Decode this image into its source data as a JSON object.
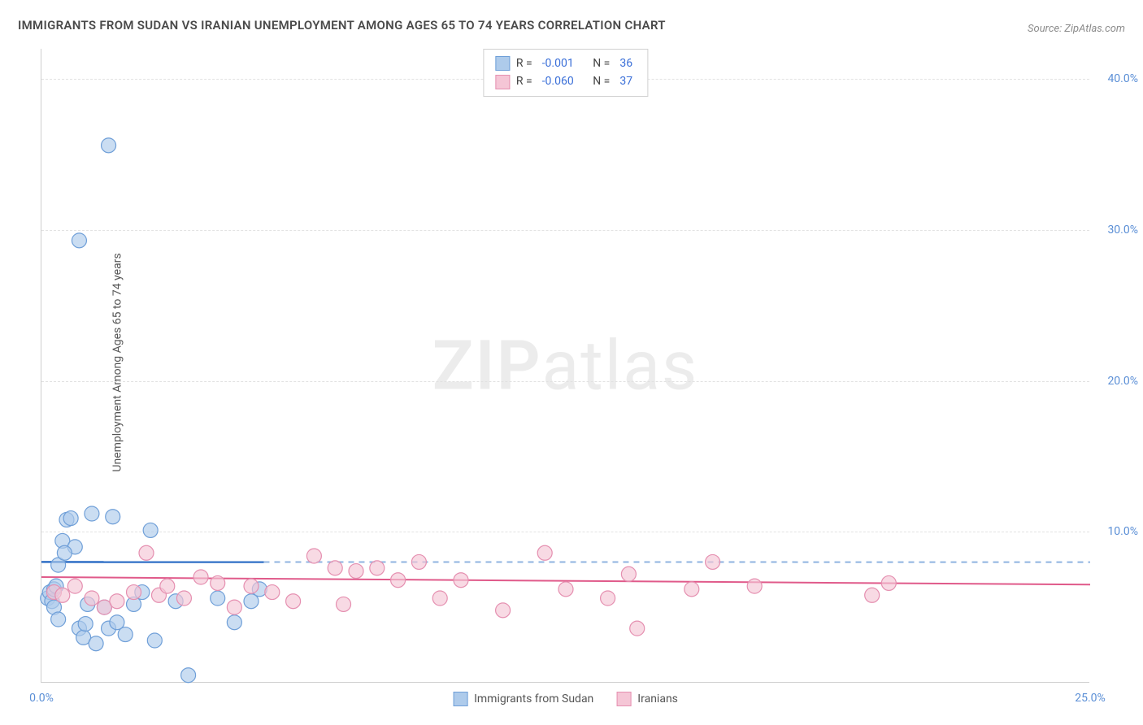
{
  "title": "IMMIGRANTS FROM SUDAN VS IRANIAN UNEMPLOYMENT AMONG AGES 65 TO 74 YEARS CORRELATION CHART",
  "source": "Source: ZipAtlas.com",
  "yaxis_label": "Unemployment Among Ages 65 to 74 years",
  "watermark_bold": "ZIP",
  "watermark_rest": "atlas",
  "chart": {
    "type": "scatter",
    "x_domain": [
      0,
      25
    ],
    "y_domain": [
      0,
      42
    ],
    "y_ticks": [
      10,
      20,
      30,
      40
    ],
    "y_tick_labels": [
      "10.0%",
      "20.0%",
      "30.0%",
      "40.0%"
    ],
    "x_tick_values": [
      0,
      25
    ],
    "x_tick_labels": [
      "0.0%",
      "25.0%"
    ],
    "background_color": "#ffffff",
    "grid_color": "#e2e2e2",
    "series": [
      {
        "name": "Immigrants from Sudan",
        "color_fill": "#aecbeb",
        "color_stroke": "#6f9fd8",
        "line_color": "#2f6fc6",
        "dashed_color": "#8fb3e0",
        "marker_radius": 9,
        "marker_opacity": 0.65,
        "R": "-0.001",
        "N": "36",
        "trend": {
          "y1": 8.0,
          "y2": 7.99,
          "x_solid_end": 5.3
        },
        "points": [
          [
            0.15,
            5.6
          ],
          [
            0.2,
            6.0
          ],
          [
            0.25,
            5.4
          ],
          [
            0.3,
            6.2
          ],
          [
            0.3,
            5.0
          ],
          [
            0.35,
            6.4
          ],
          [
            0.4,
            4.2
          ],
          [
            0.5,
            9.4
          ],
          [
            0.6,
            10.8
          ],
          [
            0.7,
            10.9
          ],
          [
            0.8,
            9.0
          ],
          [
            0.9,
            3.6
          ],
          [
            1.0,
            3.0
          ],
          [
            1.05,
            3.9
          ],
          [
            1.1,
            5.2
          ],
          [
            1.2,
            11.2
          ],
          [
            1.3,
            2.6
          ],
          [
            1.5,
            5.0
          ],
          [
            1.6,
            3.6
          ],
          [
            1.7,
            11.0
          ],
          [
            1.8,
            4.0
          ],
          [
            2.0,
            3.2
          ],
          [
            2.2,
            5.2
          ],
          [
            2.4,
            6.0
          ],
          [
            2.6,
            10.1
          ],
          [
            2.7,
            2.8
          ],
          [
            3.2,
            5.4
          ],
          [
            3.5,
            0.5
          ],
          [
            4.2,
            5.6
          ],
          [
            4.6,
            4.0
          ],
          [
            5.0,
            5.4
          ],
          [
            5.2,
            6.2
          ],
          [
            0.9,
            29.3
          ],
          [
            1.6,
            35.6
          ],
          [
            0.4,
            7.8
          ],
          [
            0.55,
            8.6
          ]
        ]
      },
      {
        "name": "Iranians",
        "color_fill": "#f5c6d6",
        "color_stroke": "#e58fb0",
        "line_color": "#e05a8a",
        "marker_radius": 9,
        "marker_opacity": 0.65,
        "R": "-0.060",
        "N": "37",
        "trend": {
          "y1": 7.0,
          "y2": 6.5
        },
        "points": [
          [
            0.3,
            6.0
          ],
          [
            0.5,
            5.8
          ],
          [
            0.8,
            6.4
          ],
          [
            1.2,
            5.6
          ],
          [
            1.5,
            5.0
          ],
          [
            1.8,
            5.4
          ],
          [
            2.2,
            6.0
          ],
          [
            2.5,
            8.6
          ],
          [
            2.8,
            5.8
          ],
          [
            3.0,
            6.4
          ],
          [
            3.4,
            5.6
          ],
          [
            3.8,
            7.0
          ],
          [
            4.2,
            6.6
          ],
          [
            4.6,
            5.0
          ],
          [
            5.0,
            6.4
          ],
          [
            5.5,
            6.0
          ],
          [
            6.0,
            5.4
          ],
          [
            6.5,
            8.4
          ],
          [
            7.0,
            7.6
          ],
          [
            7.2,
            5.2
          ],
          [
            7.5,
            7.4
          ],
          [
            8.0,
            7.6
          ],
          [
            8.5,
            6.8
          ],
          [
            9.0,
            8.0
          ],
          [
            9.5,
            5.6
          ],
          [
            10.0,
            6.8
          ],
          [
            11.0,
            4.8
          ],
          [
            12.0,
            8.6
          ],
          [
            12.5,
            6.2
          ],
          [
            13.5,
            5.6
          ],
          [
            14.0,
            7.2
          ],
          [
            14.2,
            3.6
          ],
          [
            15.5,
            6.2
          ],
          [
            16.0,
            8.0
          ],
          [
            17.0,
            6.4
          ],
          [
            19.8,
            5.8
          ],
          [
            20.2,
            6.6
          ]
        ]
      }
    ],
    "stats_labels": {
      "R": "R =",
      "N": "N ="
    },
    "bottom_legend": [
      {
        "label": "Immigrants from Sudan",
        "fill": "#aecbeb",
        "stroke": "#6f9fd8"
      },
      {
        "label": "Iranians",
        "fill": "#f5c6d6",
        "stroke": "#e58fb0"
      }
    ]
  }
}
